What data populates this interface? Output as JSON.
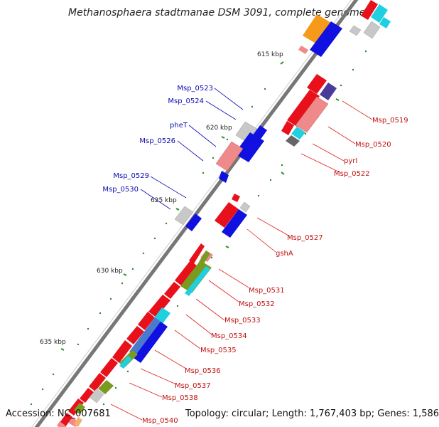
{
  "title": "Methanosphaera stadtmanae DSM 3091, complete genome",
  "footer": {
    "accession": "Accession: NC_007681",
    "info": "Topology: circular; Length: 1,767,403 bp; Genes: 1,586"
  },
  "ticks": [
    "615 kbp",
    "620 kbp",
    "625 kbp",
    "630 kbp",
    "635 kbp"
  ],
  "labels": {
    "left": [
      "Msp_0523",
      "Msp_0524",
      "pheT",
      "Msp_0526",
      "Msp_0529",
      "Msp_0530"
    ],
    "right": [
      "Msp_0519",
      "Msp_0520",
      "pyrI",
      "Msp_0522",
      "Msp_0527",
      "gshA",
      "Msp_0531",
      "Msp_0532",
      "Msp_0533",
      "Msp_0534",
      "Msp_0535",
      "Msp_0536",
      "Msp_0537",
      "Msp_0538",
      "Msp_0540"
    ]
  },
  "colors": {
    "backbone": "#777777",
    "forward_gene": "#e8101a",
    "reverse_gene": "#1010e0",
    "pink": "#f08a8a",
    "cyan": "#20d0e0",
    "olive": "#7a9a20",
    "gray": "#c0c0c0",
    "orange": "#f59a1a",
    "navy": "#4a3a9a",
    "tick": "#2a8a2a",
    "label_blue": "#0a0ab0",
    "label_red": "#c01010"
  }
}
